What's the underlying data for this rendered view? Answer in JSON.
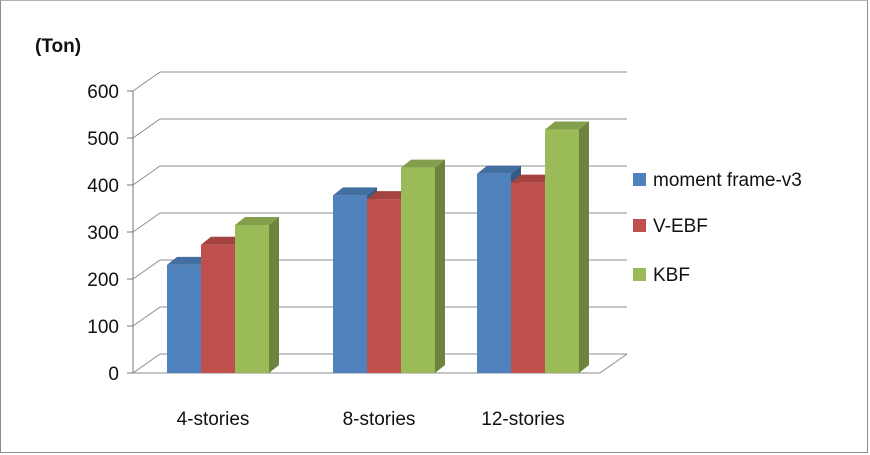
{
  "chart_data": {
    "type": "bar",
    "unit_label": "(Ton)",
    "categories": [
      "4-stories",
      "8-stories",
      "12-stories"
    ],
    "series": [
      {
        "name": "moment frame-v3",
        "color": "#4f81bd",
        "values": [
          230,
          378,
          424
        ]
      },
      {
        "name": "V-EBF",
        "color": "#c0504d",
        "values": [
          273,
          370,
          405
        ]
      },
      {
        "name": "KBF",
        "color": "#9bbb59",
        "values": [
          315,
          437,
          518
        ]
      }
    ],
    "y_ticks": [
      "0",
      "100",
      "200",
      "300",
      "400",
      "500",
      "600"
    ],
    "ylim": [
      0,
      600
    ],
    "grid": true,
    "legend_position": "right"
  }
}
